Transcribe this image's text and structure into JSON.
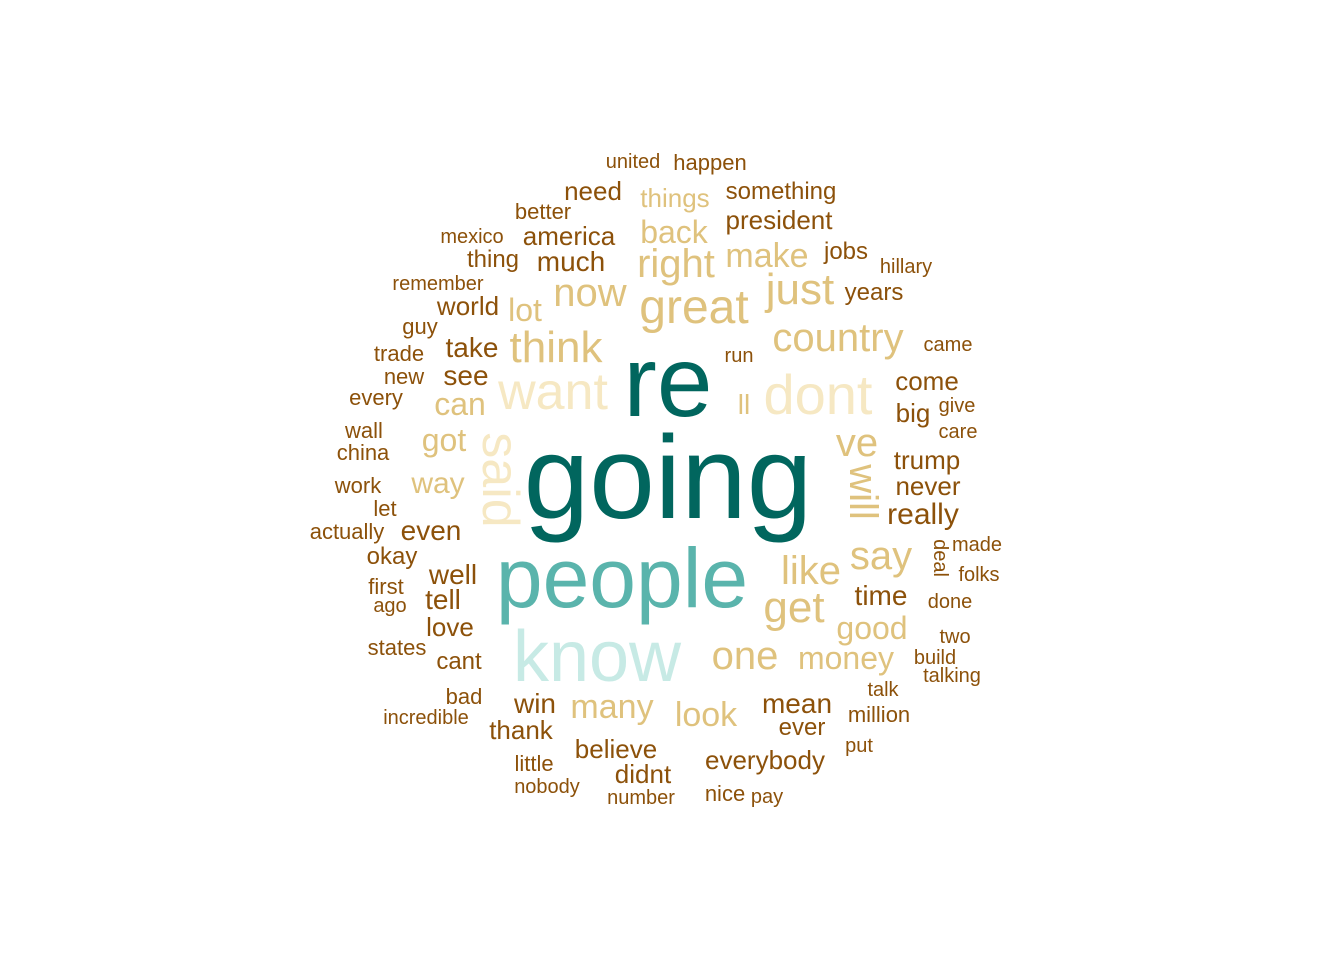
{
  "chart_data": {
    "type": "wordcloud",
    "palette": {
      "dark_teal": "#01665e",
      "mid_teal": "#5ab4ac",
      "light_teal": "#c7eae5",
      "cream": "#f6e8c3",
      "tan": "#dfc27d",
      "brown": "#8c510a"
    },
    "words": [
      {
        "text": "going",
        "weight": 100,
        "color": "dark_teal"
      },
      {
        "text": "re",
        "weight": 88,
        "color": "dark_teal"
      },
      {
        "text": "people",
        "weight": 72,
        "color": "mid_teal"
      },
      {
        "text": "know",
        "weight": 62,
        "color": "light_teal"
      },
      {
        "text": "dont",
        "weight": 48,
        "color": "cream"
      },
      {
        "text": "want",
        "weight": 46,
        "color": "cream"
      },
      {
        "text": "said",
        "weight": 46,
        "color": "cream"
      },
      {
        "text": "great",
        "weight": 42,
        "color": "tan"
      },
      {
        "text": "think",
        "weight": 40,
        "color": "tan"
      },
      {
        "text": "just",
        "weight": 38,
        "color": "tan"
      },
      {
        "text": "get",
        "weight": 38,
        "color": "tan"
      },
      {
        "text": "will",
        "weight": 38,
        "color": "tan"
      },
      {
        "text": "country",
        "weight": 36,
        "color": "tan"
      },
      {
        "text": "ve",
        "weight": 36,
        "color": "tan"
      },
      {
        "text": "right",
        "weight": 36,
        "color": "tan"
      },
      {
        "text": "now",
        "weight": 36,
        "color": "tan"
      },
      {
        "text": "like",
        "weight": 36,
        "color": "tan"
      },
      {
        "text": "one",
        "weight": 34,
        "color": "tan"
      },
      {
        "text": "say",
        "weight": 34,
        "color": "tan"
      },
      {
        "text": "make",
        "weight": 30,
        "color": "tan"
      },
      {
        "text": "many",
        "weight": 30,
        "color": "tan"
      },
      {
        "text": "money",
        "weight": 28,
        "color": "tan"
      },
      {
        "text": "look",
        "weight": 30,
        "color": "tan"
      },
      {
        "text": "lot",
        "weight": 28,
        "color": "tan"
      },
      {
        "text": "can",
        "weight": 28,
        "color": "tan"
      },
      {
        "text": "back",
        "weight": 28,
        "color": "tan"
      },
      {
        "text": "good",
        "weight": 28,
        "color": "tan"
      },
      {
        "text": "got",
        "weight": 28,
        "color": "tan"
      },
      {
        "text": "way",
        "weight": 26,
        "color": "tan"
      },
      {
        "text": "ll",
        "weight": 24,
        "color": "tan"
      },
      {
        "text": "mean",
        "weight": 26,
        "color": "brown"
      },
      {
        "text": "america",
        "weight": 24,
        "color": "brown"
      },
      {
        "text": "much",
        "weight": 26,
        "color": "brown"
      },
      {
        "text": "take",
        "weight": 26,
        "color": "brown"
      },
      {
        "text": "see",
        "weight": 26,
        "color": "brown"
      },
      {
        "text": "even",
        "weight": 26,
        "color": "brown"
      },
      {
        "text": "well",
        "weight": 26,
        "color": "brown"
      },
      {
        "text": "tell",
        "weight": 26,
        "color": "brown"
      },
      {
        "text": "really",
        "weight": 26,
        "color": "brown"
      },
      {
        "text": "time",
        "weight": 24,
        "color": "brown"
      },
      {
        "text": "president",
        "weight": 24,
        "color": "brown"
      },
      {
        "text": "things",
        "weight": 24,
        "color": "tan"
      },
      {
        "text": "win",
        "weight": 24,
        "color": "brown"
      },
      {
        "text": "believe",
        "weight": 24,
        "color": "brown"
      },
      {
        "text": "everybody",
        "weight": 24,
        "color": "brown"
      },
      {
        "text": "trump",
        "weight": 24,
        "color": "brown"
      },
      {
        "text": "never",
        "weight": 24,
        "color": "brown"
      },
      {
        "text": "come",
        "weight": 24,
        "color": "brown"
      },
      {
        "text": "world",
        "weight": 24,
        "color": "brown"
      },
      {
        "text": "thank",
        "weight": 24,
        "color": "brown"
      },
      {
        "text": "love",
        "weight": 24,
        "color": "brown"
      },
      {
        "text": "didnt",
        "weight": 24,
        "color": "brown"
      },
      {
        "text": "big",
        "weight": 24,
        "color": "brown"
      },
      {
        "text": "need",
        "weight": 24,
        "color": "brown"
      },
      {
        "text": "something",
        "weight": 24,
        "color": "brown"
      },
      {
        "text": "cant",
        "weight": 22,
        "color": "brown"
      },
      {
        "text": "ever",
        "weight": 22,
        "color": "brown"
      },
      {
        "text": "thing",
        "weight": 22,
        "color": "brown"
      },
      {
        "text": "years",
        "weight": 22,
        "color": "brown"
      },
      {
        "text": "jobs",
        "weight": 22,
        "color": "brown"
      },
      {
        "text": "happen",
        "weight": 22,
        "color": "brown"
      },
      {
        "text": "better",
        "weight": 22,
        "color": "brown"
      },
      {
        "text": "china",
        "weight": 22,
        "color": "brown"
      },
      {
        "text": "actually",
        "weight": 20,
        "color": "brown"
      },
      {
        "text": "million",
        "weight": 20,
        "color": "brown"
      },
      {
        "text": "okay",
        "weight": 22,
        "color": "brown"
      },
      {
        "text": "trade",
        "weight": 20,
        "color": "brown"
      },
      {
        "text": "every",
        "weight": 20,
        "color": "brown"
      },
      {
        "text": "united",
        "weight": 20,
        "color": "brown"
      },
      {
        "text": "remember",
        "weight": 20,
        "color": "brown"
      },
      {
        "text": "hillary",
        "weight": 20,
        "color": "brown"
      },
      {
        "text": "mexico",
        "weight": 20,
        "color": "brown"
      },
      {
        "text": "guy",
        "weight": 20,
        "color": "brown"
      },
      {
        "text": "new",
        "weight": 20,
        "color": "brown"
      },
      {
        "text": "wall",
        "weight": 20,
        "color": "brown"
      },
      {
        "text": "work",
        "weight": 20,
        "color": "brown"
      },
      {
        "text": "let",
        "weight": 20,
        "color": "brown"
      },
      {
        "text": "first",
        "weight": 20,
        "color": "brown"
      },
      {
        "text": "ago",
        "weight": 20,
        "color": "brown"
      },
      {
        "text": "states",
        "weight": 20,
        "color": "brown"
      },
      {
        "text": "bad",
        "weight": 20,
        "color": "brown"
      },
      {
        "text": "incredible",
        "weight": 20,
        "color": "brown"
      },
      {
        "text": "little",
        "weight": 20,
        "color": "brown"
      },
      {
        "text": "nobody",
        "weight": 20,
        "color": "brown"
      },
      {
        "text": "number",
        "weight": 20,
        "color": "brown"
      },
      {
        "text": "nice",
        "weight": 20,
        "color": "brown"
      },
      {
        "text": "pay",
        "weight": 20,
        "color": "brown"
      },
      {
        "text": "put",
        "weight": 20,
        "color": "brown"
      },
      {
        "text": "talk",
        "weight": 20,
        "color": "brown"
      },
      {
        "text": "talking",
        "weight": 20,
        "color": "brown"
      },
      {
        "text": "build",
        "weight": 20,
        "color": "brown"
      },
      {
        "text": "two",
        "weight": 20,
        "color": "brown"
      },
      {
        "text": "done",
        "weight": 20,
        "color": "brown"
      },
      {
        "text": "folks",
        "weight": 20,
        "color": "brown"
      },
      {
        "text": "made",
        "weight": 20,
        "color": "brown"
      },
      {
        "text": "deal",
        "weight": 20,
        "color": "brown"
      },
      {
        "text": "care",
        "weight": 20,
        "color": "brown"
      },
      {
        "text": "give",
        "weight": 20,
        "color": "brown"
      },
      {
        "text": "came",
        "weight": 20,
        "color": "brown"
      },
      {
        "text": "run",
        "weight": 20,
        "color": "brown"
      }
    ]
  }
}
